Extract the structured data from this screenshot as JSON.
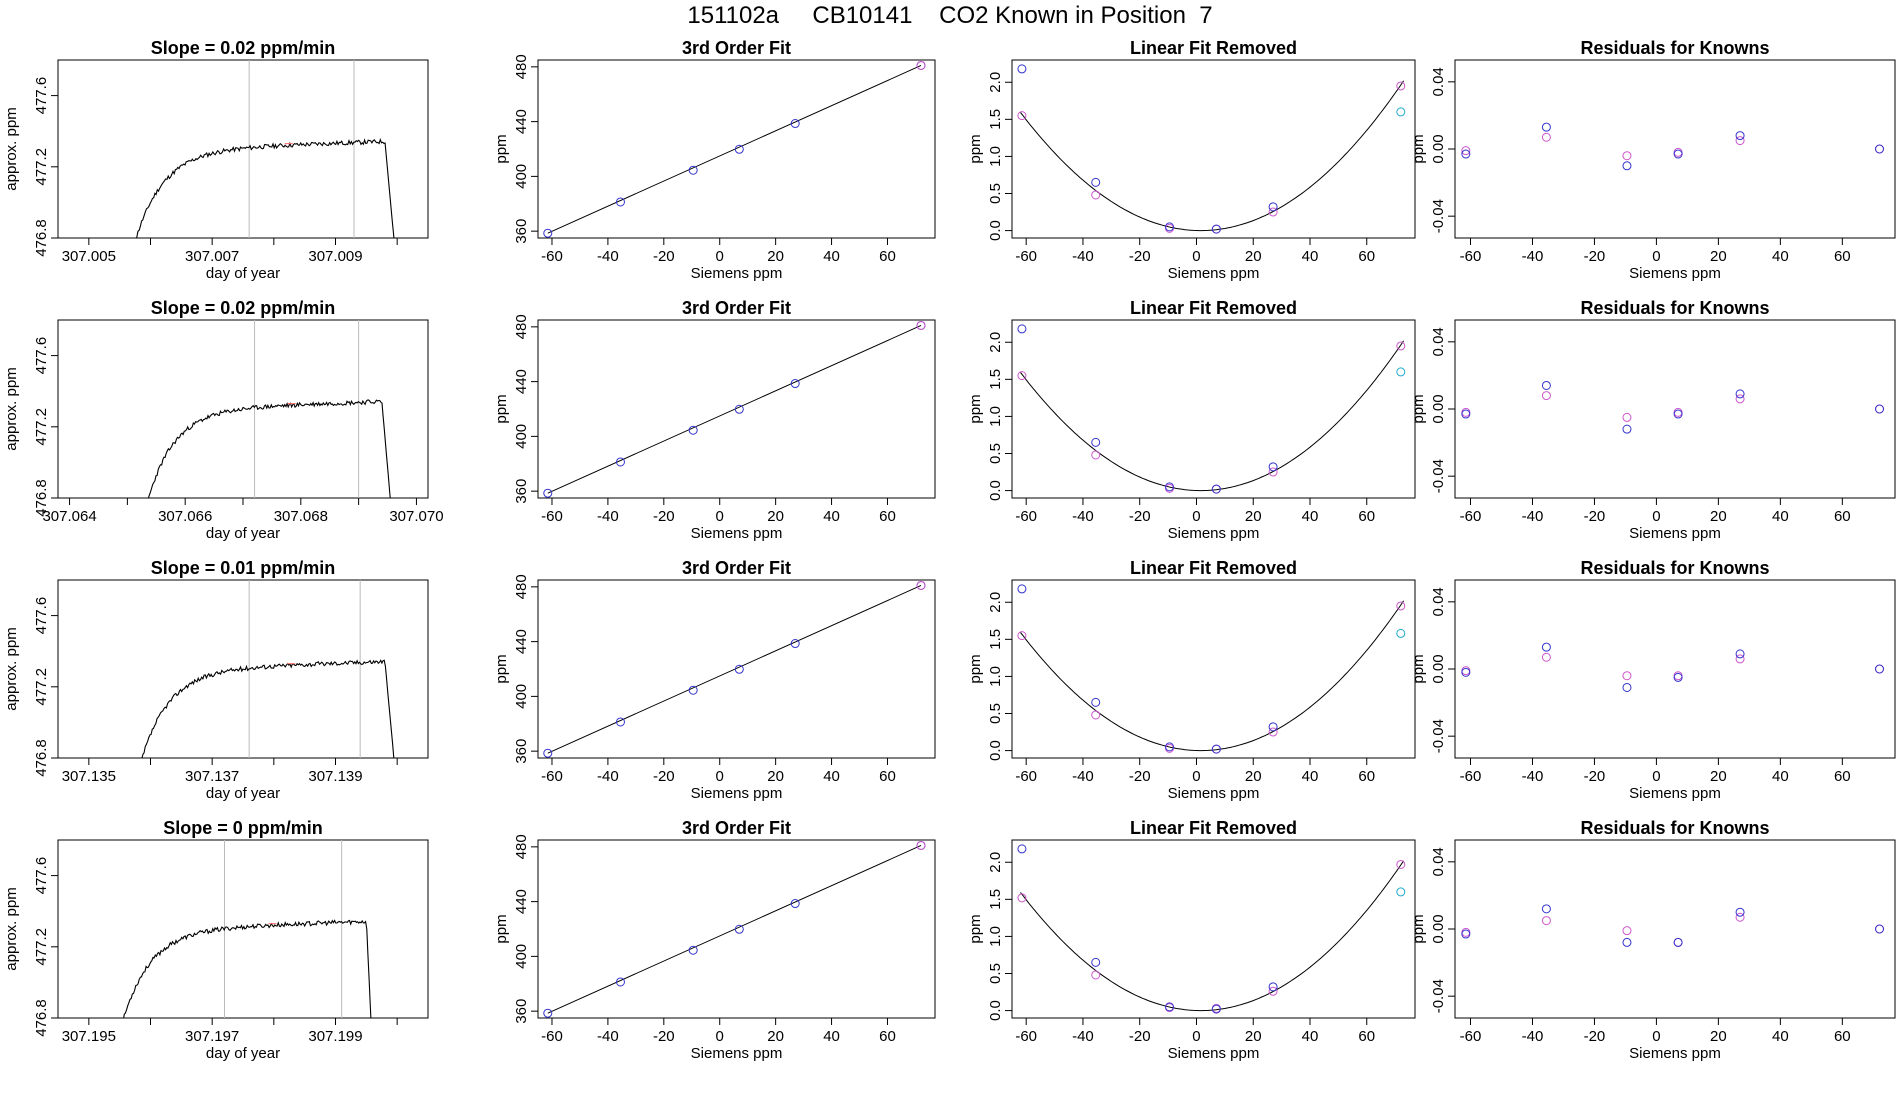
{
  "title": "151102a     CB10141    CO2 Known in Position  7",
  "colors": {
    "line": "#000000",
    "blue": "#3333cc",
    "magenta": "#cc55cc",
    "cyan": "#22aacc",
    "marker": "#ff6666",
    "vline": "#bbbbbb"
  },
  "chart_data": [
    {
      "type": "line",
      "panel": "timeseries",
      "row": 1,
      "title": "Slope =  0.02  ppm/min",
      "xlabel": "day of year",
      "ylabel": "approx. ppm",
      "xlim": [
        307.0045,
        307.0105
      ],
      "ylim": [
        476.8,
        477.8
      ],
      "xticks": [
        307.005,
        307.006,
        307.007,
        307.008,
        307.009,
        307.01
      ],
      "xtick_labels": [
        "307.005",
        "",
        "307.007",
        "",
        "307.009",
        ""
      ],
      "yticks": [
        476.8,
        477.2,
        477.6
      ],
      "ytick_labels": [
        "476.8",
        "477.2",
        "477.6"
      ],
      "vlines": [
        307.0076,
        307.0093
      ],
      "trace": {
        "start": 307.0057,
        "end": 307.01,
        "drop_at": 307.0098,
        "plateau_y": 477.3,
        "seed": 11
      }
    },
    {
      "type": "line",
      "panel": "fit",
      "row": 1,
      "title": "3rd Order Fit",
      "xlabel": "Siemens ppm",
      "ylabel": "ppm",
      "xlim": [
        -65,
        77
      ],
      "ylim": [
        355,
        485
      ],
      "xticks": [
        -60,
        -40,
        -20,
        0,
        20,
        40,
        60
      ],
      "yticks": [
        360,
        400,
        440,
        480
      ],
      "points": {
        "x": [
          -61.5,
          -35.5,
          -9.5,
          7.0,
          27.0,
          72.0
        ],
        "y": [
          358.5,
          381.3,
          404.5,
          419.8,
          438.6,
          481.0
        ]
      },
      "line": {
        "x": [
          -61.5,
          72.0
        ],
        "y": [
          358.5,
          481.0
        ]
      }
    },
    {
      "type": "scatter",
      "panel": "linear",
      "row": 1,
      "title": "Linear Fit Removed",
      "xlabel": "Siemens ppm",
      "ylabel": "ppm",
      "xlim": [
        -65,
        77
      ],
      "ylim": [
        -0.1,
        2.3
      ],
      "xticks": [
        -60,
        -40,
        -20,
        0,
        20,
        40,
        60
      ],
      "yticks": [
        0.0,
        0.5,
        1.0,
        1.5,
        2.0
      ],
      "ytick_labels": [
        "0.0",
        "0.5",
        "1.0",
        "1.5",
        "2.0"
      ],
      "curve_coeff": 0.000395,
      "curve_center": 1.5,
      "blue": {
        "x": [
          -61.5,
          -35.5,
          -9.5,
          7.0,
          27.0
        ],
        "y": [
          2.18,
          0.65,
          0.05,
          0.02,
          0.32
        ]
      },
      "magenta": {
        "x": [
          -61.5,
          -35.5,
          -9.5,
          7.0,
          27.0,
          72.0
        ],
        "y": [
          1.55,
          0.48,
          0.03,
          0.02,
          0.25,
          1.95
        ]
      },
      "cyan": {
        "x": [
          72.0
        ],
        "y": [
          1.6
        ]
      }
    },
    {
      "type": "scatter",
      "panel": "resid",
      "row": 1,
      "title": "Residuals for Knowns",
      "xlabel": "Siemens ppm",
      "ylabel": "ppm",
      "xlim": [
        -65,
        77
      ],
      "ylim": [
        -0.053,
        0.053
      ],
      "xticks": [
        -60,
        -40,
        -20,
        0,
        20,
        40,
        60
      ],
      "yticks": [
        -0.04,
        0.0,
        0.04
      ],
      "ytick_labels": [
        "-0.04",
        "0.00",
        "0.04"
      ],
      "blue": {
        "x": [
          -61.5,
          -35.5,
          -9.5,
          7.0,
          27.0,
          72.0
        ],
        "y": [
          -0.003,
          0.013,
          -0.01,
          -0.003,
          0.008,
          0.0
        ]
      },
      "magenta": {
        "x": [
          -61.5,
          -35.5,
          -9.5,
          7.0,
          27.0,
          72.0
        ],
        "y": [
          -0.001,
          0.007,
          -0.004,
          -0.002,
          0.005,
          0.0
        ]
      }
    },
    {
      "type": "line",
      "panel": "timeseries",
      "row": 2,
      "title": "Slope =  0.02  ppm/min",
      "xlabel": "day of year",
      "ylabel": "approx. ppm",
      "xlim": [
        307.0638,
        307.0702
      ],
      "ylim": [
        476.8,
        477.8
      ],
      "xticks": [
        307.064,
        307.065,
        307.066,
        307.067,
        307.068,
        307.069,
        307.07
      ],
      "xtick_labels": [
        "307.064",
        "",
        "307.066",
        "",
        "307.068",
        "",
        "307.070"
      ],
      "yticks": [
        476.8,
        477.2,
        477.6
      ],
      "ytick_labels": [
        "476.8",
        "477.2",
        "477.6"
      ],
      "vlines": [
        307.0672,
        307.069
      ],
      "trace": {
        "start": 307.0653,
        "end": 307.0696,
        "drop_at": 307.0694,
        "plateau_y": 477.3,
        "seed": 23
      }
    },
    {
      "type": "line",
      "panel": "fit",
      "row": 2,
      "title": "3rd Order Fit",
      "xlabel": "Siemens ppm",
      "ylabel": "ppm",
      "xlim": [
        -65,
        77
      ],
      "ylim": [
        355,
        485
      ],
      "xticks": [
        -60,
        -40,
        -20,
        0,
        20,
        40,
        60
      ],
      "yticks": [
        360,
        400,
        440,
        480
      ],
      "points": {
        "x": [
          -61.5,
          -35.5,
          -9.5,
          7.0,
          27.0,
          72.0
        ],
        "y": [
          358.5,
          381.3,
          404.5,
          419.8,
          438.6,
          481.0
        ]
      },
      "line": {
        "x": [
          -61.5,
          72.0
        ],
        "y": [
          358.5,
          481.0
        ]
      }
    },
    {
      "type": "scatter",
      "panel": "linear",
      "row": 2,
      "title": "Linear Fit Removed",
      "xlabel": "Siemens ppm",
      "ylabel": "ppm",
      "xlim": [
        -65,
        77
      ],
      "ylim": [
        -0.1,
        2.3
      ],
      "xticks": [
        -60,
        -40,
        -20,
        0,
        20,
        40,
        60
      ],
      "yticks": [
        0.0,
        0.5,
        1.0,
        1.5,
        2.0
      ],
      "ytick_labels": [
        "0.0",
        "0.5",
        "1.0",
        "1.5",
        "2.0"
      ],
      "curve_coeff": 0.000395,
      "curve_center": 1.5,
      "blue": {
        "x": [
          -61.5,
          -35.5,
          -9.5,
          7.0,
          27.0
        ],
        "y": [
          2.18,
          0.65,
          0.05,
          0.02,
          0.32
        ]
      },
      "magenta": {
        "x": [
          -61.5,
          -35.5,
          -9.5,
          7.0,
          27.0,
          72.0
        ],
        "y": [
          1.55,
          0.48,
          0.03,
          0.02,
          0.25,
          1.95
        ]
      },
      "cyan": {
        "x": [
          72.0
        ],
        "y": [
          1.6
        ]
      }
    },
    {
      "type": "scatter",
      "panel": "resid",
      "row": 2,
      "title": "Residuals for Knowns",
      "xlabel": "Siemens ppm",
      "ylabel": "ppm",
      "xlim": [
        -65,
        77
      ],
      "ylim": [
        -0.053,
        0.053
      ],
      "xticks": [
        -60,
        -40,
        -20,
        0,
        20,
        40,
        60
      ],
      "yticks": [
        -0.04,
        0.0,
        0.04
      ],
      "ytick_labels": [
        "-0.04",
        "0.00",
        "0.04"
      ],
      "blue": {
        "x": [
          -61.5,
          -35.5,
          -9.5,
          7.0,
          27.0,
          72.0
        ],
        "y": [
          -0.003,
          0.014,
          -0.012,
          -0.003,
          0.009,
          0.0
        ]
      },
      "magenta": {
        "x": [
          -61.5,
          -35.5,
          -9.5,
          7.0,
          27.0,
          72.0
        ],
        "y": [
          -0.002,
          0.008,
          -0.005,
          -0.002,
          0.006,
          0.0
        ]
      }
    },
    {
      "type": "line",
      "panel": "timeseries",
      "row": 3,
      "title": "Slope =  0.01  ppm/min",
      "xlabel": "day of year",
      "ylabel": "approx. ppm",
      "xlim": [
        307.1345,
        307.1405
      ],
      "ylim": [
        476.8,
        477.8
      ],
      "xticks": [
        307.135,
        307.136,
        307.137,
        307.138,
        307.139,
        307.14
      ],
      "xtick_labels": [
        "307.135",
        "",
        "307.137",
        "",
        "307.139",
        ""
      ],
      "yticks": [
        476.8,
        477.2,
        477.6
      ],
      "ytick_labels": [
        "476.8",
        "477.2",
        "477.6"
      ],
      "vlines": [
        307.1376,
        307.1394
      ],
      "trace": {
        "start": 307.1358,
        "end": 307.14,
        "drop_at": 307.1398,
        "plateau_y": 477.3,
        "seed": 37
      }
    },
    {
      "type": "line",
      "panel": "fit",
      "row": 3,
      "title": "3rd Order Fit",
      "xlabel": "Siemens ppm",
      "ylabel": "ppm",
      "xlim": [
        -65,
        77
      ],
      "ylim": [
        355,
        485
      ],
      "xticks": [
        -60,
        -40,
        -20,
        0,
        20,
        40,
        60
      ],
      "yticks": [
        360,
        400,
        440,
        480
      ],
      "points": {
        "x": [
          -61.5,
          -35.5,
          -9.5,
          7.0,
          27.0,
          72.0
        ],
        "y": [
          358.5,
          381.3,
          404.5,
          419.8,
          438.6,
          481.0
        ]
      },
      "line": {
        "x": [
          -61.5,
          72.0
        ],
        "y": [
          358.5,
          481.0
        ]
      }
    },
    {
      "type": "scatter",
      "panel": "linear",
      "row": 3,
      "title": "Linear Fit Removed",
      "xlabel": "Siemens ppm",
      "ylabel": "ppm",
      "xlim": [
        -65,
        77
      ],
      "ylim": [
        -0.1,
        2.3
      ],
      "xticks": [
        -60,
        -40,
        -20,
        0,
        20,
        40,
        60
      ],
      "yticks": [
        0.0,
        0.5,
        1.0,
        1.5,
        2.0
      ],
      "ytick_labels": [
        "0.0",
        "0.5",
        "1.0",
        "1.5",
        "2.0"
      ],
      "curve_coeff": 0.000395,
      "curve_center": 1.5,
      "blue": {
        "x": [
          -61.5,
          -35.5,
          -9.5,
          7.0,
          27.0
        ],
        "y": [
          2.18,
          0.65,
          0.05,
          0.02,
          0.32
        ]
      },
      "magenta": {
        "x": [
          -61.5,
          -35.5,
          -9.5,
          7.0,
          27.0,
          72.0
        ],
        "y": [
          1.55,
          0.48,
          0.03,
          0.02,
          0.25,
          1.95
        ]
      },
      "cyan": {
        "x": [
          72.0
        ],
        "y": [
          1.58
        ]
      }
    },
    {
      "type": "scatter",
      "panel": "resid",
      "row": 3,
      "title": "Residuals for Knowns",
      "xlabel": "Siemens ppm",
      "ylabel": "ppm",
      "xlim": [
        -65,
        77
      ],
      "ylim": [
        -0.053,
        0.053
      ],
      "xticks": [
        -60,
        -40,
        -20,
        0,
        20,
        40,
        60
      ],
      "yticks": [
        -0.04,
        0.0,
        0.04
      ],
      "ytick_labels": [
        "-0.04",
        "0.00",
        "0.04"
      ],
      "blue": {
        "x": [
          -61.5,
          -35.5,
          -9.5,
          7.0,
          27.0,
          72.0
        ],
        "y": [
          -0.002,
          0.013,
          -0.011,
          -0.005,
          0.009,
          0.0
        ]
      },
      "magenta": {
        "x": [
          -61.5,
          -35.5,
          -9.5,
          7.0,
          27.0,
          72.0
        ],
        "y": [
          -0.001,
          0.007,
          -0.004,
          -0.004,
          0.006,
          0.0
        ]
      }
    },
    {
      "type": "line",
      "panel": "timeseries",
      "row": 4,
      "title": "Slope =  0  ppm/min",
      "xlabel": "day of year",
      "ylabel": "approx. ppm",
      "xlim": [
        307.1945,
        307.2005
      ],
      "ylim": [
        476.8,
        477.8
      ],
      "xticks": [
        307.195,
        307.196,
        307.197,
        307.198,
        307.199,
        307.2
      ],
      "xtick_labels": [
        "307.195",
        "",
        "307.197",
        "",
        "307.199",
        ""
      ],
      "yticks": [
        476.8,
        477.2,
        477.6
      ],
      "ytick_labels": [
        "476.8",
        "477.2",
        "477.6"
      ],
      "vlines": [
        307.1972,
        307.1991
      ],
      "trace": {
        "start": 307.1955,
        "end": 307.1996,
        "drop_at": 307.1995,
        "plateau_y": 477.3,
        "seed": 53
      }
    },
    {
      "type": "line",
      "panel": "fit",
      "row": 4,
      "title": "3rd Order Fit",
      "xlabel": "Siemens ppm",
      "ylabel": "ppm",
      "xlim": [
        -65,
        77
      ],
      "ylim": [
        355,
        485
      ],
      "xticks": [
        -60,
        -40,
        -20,
        0,
        20,
        40,
        60
      ],
      "yticks": [
        360,
        400,
        440,
        480
      ],
      "points": {
        "x": [
          -61.5,
          -35.5,
          -9.5,
          7.0,
          27.0,
          72.0
        ],
        "y": [
          358.5,
          381.3,
          404.5,
          419.8,
          438.6,
          481.0
        ]
      },
      "line": {
        "x": [
          -61.5,
          72.0
        ],
        "y": [
          358.5,
          481.0
        ]
      }
    },
    {
      "type": "scatter",
      "panel": "linear",
      "row": 4,
      "title": "Linear Fit Removed",
      "xlabel": "Siemens ppm",
      "ylabel": "ppm",
      "xlim": [
        -65,
        77
      ],
      "ylim": [
        -0.1,
        2.3
      ],
      "xticks": [
        -60,
        -40,
        -20,
        0,
        20,
        40,
        60
      ],
      "yticks": [
        0.0,
        0.5,
        1.0,
        1.5,
        2.0
      ],
      "ytick_labels": [
        "0.0",
        "0.5",
        "1.0",
        "1.5",
        "2.0"
      ],
      "curve_coeff": 0.000395,
      "curve_center": 1.5,
      "blue": {
        "x": [
          -61.5,
          -35.5,
          -9.5,
          7.0,
          27.0
        ],
        "y": [
          2.18,
          0.65,
          0.05,
          0.02,
          0.32
        ]
      },
      "magenta": {
        "x": [
          -61.5,
          -35.5,
          -9.5,
          7.0,
          27.0,
          72.0
        ],
        "y": [
          1.52,
          0.48,
          0.04,
          0.03,
          0.26,
          1.97
        ]
      },
      "cyan": {
        "x": [
          72.0
        ],
        "y": [
          1.6
        ]
      }
    },
    {
      "type": "scatter",
      "panel": "resid",
      "row": 4,
      "title": "Residuals for Knowns",
      "xlabel": "Siemens ppm",
      "ylabel": "ppm",
      "xlim": [
        -65,
        77
      ],
      "ylim": [
        -0.053,
        0.053
      ],
      "xticks": [
        -60,
        -40,
        -20,
        0,
        20,
        40,
        60
      ],
      "yticks": [
        -0.04,
        0.0,
        0.04
      ],
      "ytick_labels": [
        "-0.04",
        "0.00",
        "0.04"
      ],
      "blue": {
        "x": [
          -61.5,
          -35.5,
          -9.5,
          7.0,
          27.0,
          72.0
        ],
        "y": [
          -0.003,
          0.012,
          -0.008,
          -0.008,
          0.01,
          0.0
        ]
      },
      "magenta": {
        "x": [
          -61.5,
          -35.5,
          -9.5,
          7.0,
          27.0,
          72.0
        ],
        "y": [
          -0.002,
          0.005,
          -0.001,
          -0.008,
          0.007,
          0.0
        ]
      }
    }
  ]
}
